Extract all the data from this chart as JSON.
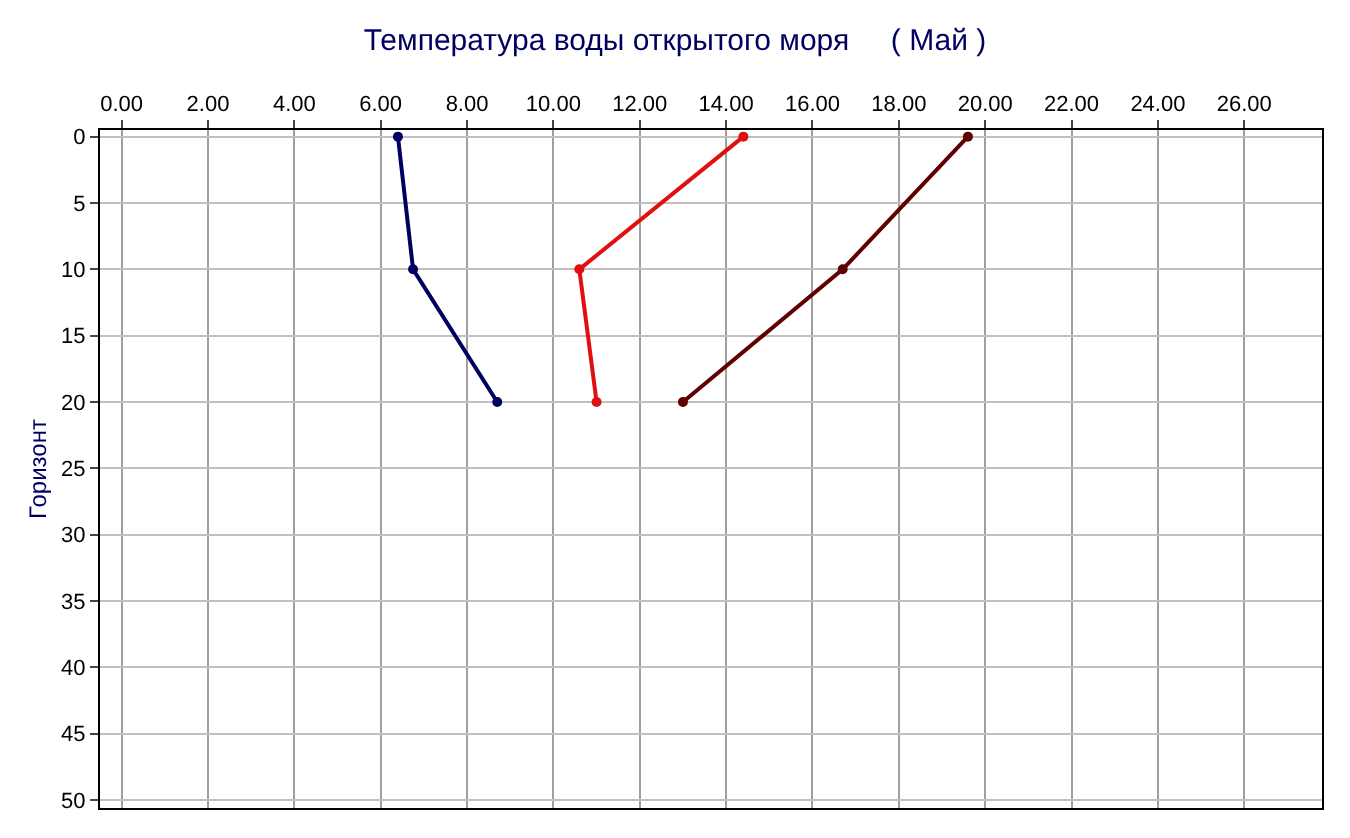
{
  "chart_data": {
    "type": "line",
    "title": "Температура воды открытого моря     ( Май )",
    "ylabel": "Горизонт",
    "series": [
      {
        "color": "#000060",
        "x": [
          6.4,
          6.75,
          8.7
        ],
        "values": [
          0,
          10,
          20
        ]
      },
      {
        "color": "#e01010",
        "x": [
          14.4,
          10.6,
          11.0
        ],
        "values": [
          0,
          10,
          20
        ]
      },
      {
        "color": "#600000",
        "x": [
          19.6,
          16.7,
          13.0
        ],
        "values": [
          0,
          10,
          20
        ]
      }
    ],
    "xlim": [
      -0.5,
      27.8
    ],
    "xticks": [
      {
        "value": 0,
        "label": "0.00"
      },
      {
        "value": 2,
        "label": "2.00"
      },
      {
        "value": 4,
        "label": "4.00"
      },
      {
        "value": 6,
        "label": "6.00"
      },
      {
        "value": 8,
        "label": "8.00"
      },
      {
        "value": 10,
        "label": "10.00"
      },
      {
        "value": 12,
        "label": "12.00"
      },
      {
        "value": 14,
        "label": "14.00"
      },
      {
        "value": 16,
        "label": "16.00"
      },
      {
        "value": 18,
        "label": "18.00"
      },
      {
        "value": 20,
        "label": "20.00"
      },
      {
        "value": 22,
        "label": "22.00"
      },
      {
        "value": 24,
        "label": "24.00"
      },
      {
        "value": 26,
        "label": "26.00"
      }
    ],
    "ylim": [
      50.6,
      -0.5
    ],
    "yticks": [
      0,
      5,
      10,
      15,
      20,
      25,
      30,
      35,
      40,
      45,
      50
    ],
    "grid": true,
    "marker": "circle",
    "line_style": "solid"
  }
}
